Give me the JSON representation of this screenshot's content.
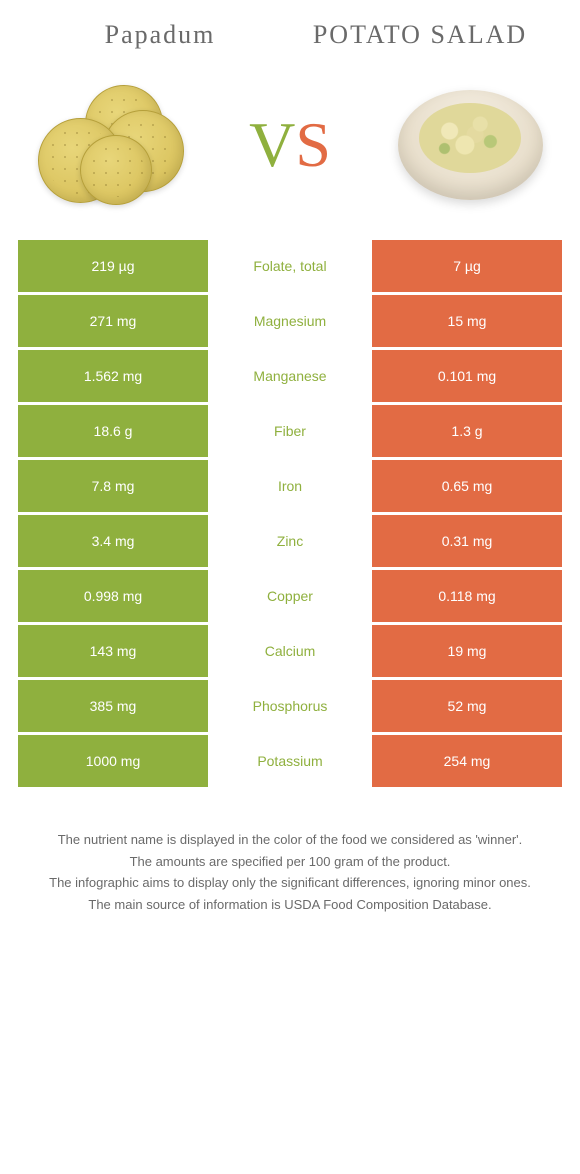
{
  "foods": {
    "left": {
      "title": "Papadum",
      "color": "#8fb03e"
    },
    "right": {
      "title": "POTATO SALAD",
      "color": "#e26b44"
    }
  },
  "vs": {
    "v": "V",
    "s": "S"
  },
  "label_color": "#8fb03e",
  "table_bg": "#ffffff",
  "rows": [
    {
      "label": "Folate, total",
      "left": "219 µg",
      "right": "7 µg",
      "winner": "left"
    },
    {
      "label": "Magnesium",
      "left": "271 mg",
      "right": "15 mg",
      "winner": "left"
    },
    {
      "label": "Manganese",
      "left": "1.562 mg",
      "right": "0.101 mg",
      "winner": "left"
    },
    {
      "label": "Fiber",
      "left": "18.6 g",
      "right": "1.3 g",
      "winner": "left"
    },
    {
      "label": "Iron",
      "left": "7.8 mg",
      "right": "0.65 mg",
      "winner": "left"
    },
    {
      "label": "Zinc",
      "left": "3.4 mg",
      "right": "0.31 mg",
      "winner": "left"
    },
    {
      "label": "Copper",
      "left": "0.998 mg",
      "right": "0.118 mg",
      "winner": "left"
    },
    {
      "label": "Calcium",
      "left": "143 mg",
      "right": "19 mg",
      "winner": "left"
    },
    {
      "label": "Phosphorus",
      "left": "385 mg",
      "right": "52 mg",
      "winner": "left"
    },
    {
      "label": "Potassium",
      "left": "1000 mg",
      "right": "254 mg",
      "winner": "left"
    }
  ],
  "footer": [
    "The nutrient name is displayed in the color of the food we considered as 'winner'.",
    "The amounts are specified per 100 gram of the product.",
    "The infographic aims to display only the significant differences, ignoring minor ones.",
    "The main source of information is USDA Food Composition Database."
  ]
}
